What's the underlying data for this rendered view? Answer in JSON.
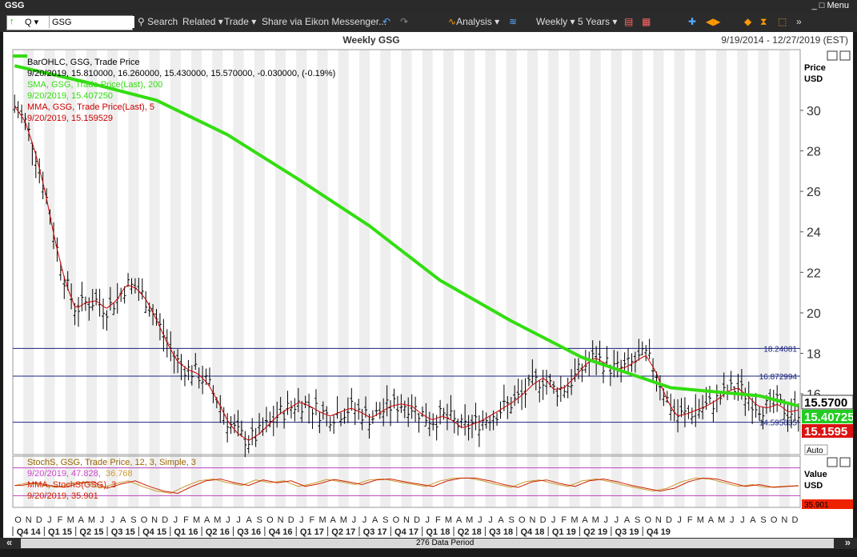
{
  "window": {
    "title": "GSG",
    "menu": "Menu"
  },
  "toolbar": {
    "ric": "GSG",
    "search": "Search",
    "related": "Related",
    "trade": "Trade",
    "share": "Share via Eikon Messenger...",
    "analysis": "Analysis",
    "interval": "Weekly",
    "range": "5 Years"
  },
  "header": {
    "title": "Weekly GSG",
    "date_range": "9/19/2014 - 12/27/2019 (EST)"
  },
  "legend": {
    "l1": "BarOHLC, GSG, Trade Price",
    "l2": "9/20/2019, 15.810000, 16.260000, 15.430000, 15.570000, -0.030000, (-0.19%)",
    "l3": "SMA, GSG, Trade Price(Last), 200",
    "l4": "9/20/2019, 15.407250",
    "l5": "MMA, GSG, Trade Price(Last), 5",
    "l6": "9/20/2019, 15.159529",
    "s1": "StochS, GSG, Trade Price, 12, 3, Simple, 3",
    "s2a": "9/20/2019, 47.828,",
    "s2b": "36.768",
    "s3": "MMA, StochS(GSG), 3",
    "s4": "9/20/2019, 35.901"
  },
  "axis": {
    "price_label": "Price",
    "price_unit": "USD",
    "value_label": "Value",
    "value_unit": "USD",
    "auto": "Auto",
    "data_period": "276 Data Period"
  },
  "colors": {
    "sma": "#33dd11",
    "mma": "#cc0000",
    "stoch": "#cc9933",
    "stoch_ma": "#cc2200",
    "hline": "#1a237e",
    "band": "#bb44bb",
    "bar": "#000000"
  },
  "chart_data": {
    "type": "line",
    "ylim": [
      13,
      33
    ],
    "yticks": [
      16,
      18,
      20,
      22,
      24,
      26,
      28,
      30
    ],
    "hlines": [
      {
        "value": 18.24081,
        "label": "18.24081"
      },
      {
        "value": 16.872994,
        "label": "16.872994"
      },
      {
        "value": 14.595035,
        "label": "14.595035"
      }
    ],
    "last_badges": [
      {
        "value": "15.5700",
        "color": "#ffffff",
        "bg": "#ffffff",
        "text": "#000000"
      },
      {
        "value": "15.40725",
        "bg": "#22cc22",
        "text": "#ffffff"
      },
      {
        "value": "15.1595",
        "bg": "#dd1111",
        "text": "#ffffff"
      }
    ],
    "stoch_badge": "35.901",
    "months": [
      "O",
      "N",
      "D",
      "J",
      "F",
      "M",
      "A",
      "M",
      "J",
      "J",
      "A",
      "S",
      "O",
      "N",
      "D",
      "J",
      "F",
      "M",
      "A",
      "M",
      "J",
      "J",
      "A",
      "S",
      "O",
      "N",
      "D",
      "J",
      "F",
      "M",
      "A",
      "M",
      "J",
      "J",
      "A",
      "S",
      "O",
      "N",
      "D",
      "J",
      "F",
      "M",
      "A",
      "M",
      "J",
      "J",
      "A",
      "S",
      "O",
      "N",
      "D",
      "J",
      "F",
      "M",
      "A",
      "M",
      "J",
      "J",
      "A",
      "S",
      "O",
      "N",
      "D",
      "J",
      "F",
      "M",
      "A",
      "M",
      "J",
      "J",
      "A",
      "S",
      "O",
      "N",
      "D"
    ],
    "quarters": [
      "Q4 14",
      "Q1 15",
      "Q2 15",
      "Q3 15",
      "Q4 15",
      "Q1 16",
      "Q2 16",
      "Q3 16",
      "Q4 16",
      "Q1 17",
      "Q2 17",
      "Q3 17",
      "Q4 17",
      "Q1 18",
      "Q2 18",
      "Q3 18",
      "Q4 18",
      "Q1 19",
      "Q2 19",
      "Q3 19",
      "Q4 19"
    ],
    "mma_keypoints": [
      [
        0,
        30.2
      ],
      [
        2,
        29.5
      ],
      [
        4,
        28
      ],
      [
        6,
        26
      ],
      [
        8,
        23.5
      ],
      [
        10,
        21.5
      ],
      [
        12,
        20.2
      ],
      [
        14,
        20.5
      ],
      [
        16,
        20.6
      ],
      [
        18,
        20.2
      ],
      [
        20,
        20.6
      ],
      [
        22,
        21.4
      ],
      [
        24,
        21.2
      ],
      [
        26,
        20.6
      ],
      [
        28,
        19.6
      ],
      [
        30,
        18.5
      ],
      [
        32,
        17.6
      ],
      [
        34,
        17.2
      ],
      [
        36,
        17
      ],
      [
        38,
        16.5
      ],
      [
        40,
        15.6
      ],
      [
        42,
        14.6
      ],
      [
        44,
        14
      ],
      [
        46,
        13.7
      ],
      [
        48,
        14
      ],
      [
        50,
        14.5
      ],
      [
        52,
        15
      ],
      [
        54,
        15.3
      ],
      [
        56,
        15.6
      ],
      [
        58,
        15.4
      ],
      [
        60,
        15.1
      ],
      [
        62,
        14.9
      ],
      [
        64,
        15.1
      ],
      [
        66,
        15.3
      ],
      [
        68,
        15.1
      ],
      [
        70,
        14.8
      ],
      [
        72,
        15.1
      ],
      [
        74,
        15.4
      ],
      [
        76,
        15.5
      ],
      [
        78,
        15.4
      ],
      [
        80,
        15
      ],
      [
        82,
        14.7
      ],
      [
        84,
        14.9
      ],
      [
        86,
        14.7
      ],
      [
        88,
        14.3
      ],
      [
        90,
        14.5
      ],
      [
        92,
        14.7
      ],
      [
        94,
        15
      ],
      [
        96,
        15.3
      ],
      [
        98,
        15.6
      ],
      [
        100,
        16
      ],
      [
        102,
        16.5
      ],
      [
        104,
        16.8
      ],
      [
        106,
        16.2
      ],
      [
        108,
        16.3
      ],
      [
        110,
        16.8
      ],
      [
        112,
        17.4
      ],
      [
        114,
        17.8
      ],
      [
        116,
        17.5
      ],
      [
        118,
        17.2
      ],
      [
        120,
        17.3
      ],
      [
        122,
        17.6
      ],
      [
        124,
        17.9
      ],
      [
        126,
        17.1
      ],
      [
        128,
        15.8
      ],
      [
        130,
        14.9
      ],
      [
        132,
        15.0
      ],
      [
        134,
        15.2
      ],
      [
        136,
        15.4
      ],
      [
        138,
        15.7
      ],
      [
        140,
        16.1
      ],
      [
        142,
        16.3
      ],
      [
        144,
        15.9
      ],
      [
        146,
        15.4
      ],
      [
        148,
        15.3
      ],
      [
        150,
        15.5
      ],
      [
        152,
        15.1
      ],
      [
        154,
        15.2
      ]
    ],
    "sma_keypoints": [
      [
        0,
        32.2
      ],
      [
        20,
        31.4
      ],
      [
        40,
        30.5
      ],
      [
        60,
        28.8
      ],
      [
        80,
        26.6
      ],
      [
        100,
        24.3
      ],
      [
        120,
        21.6
      ],
      [
        140,
        19.6
      ],
      [
        160,
        17.8
      ],
      [
        185,
        16.3
      ],
      [
        210,
        15.9
      ],
      [
        221,
        15.4
      ]
    ],
    "stoch_keypoints": [
      [
        0,
        42
      ],
      [
        4,
        48
      ],
      [
        8,
        42
      ],
      [
        12,
        38
      ],
      [
        16,
        46
      ],
      [
        20,
        50
      ],
      [
        24,
        36
      ],
      [
        28,
        45
      ],
      [
        32,
        52
      ],
      [
        36,
        40
      ],
      [
        40,
        30
      ],
      [
        44,
        25
      ],
      [
        48,
        40
      ],
      [
        52,
        52
      ],
      [
        56,
        56
      ],
      [
        60,
        48
      ],
      [
        64,
        42
      ],
      [
        68,
        54
      ],
      [
        72,
        48
      ],
      [
        76,
        52
      ],
      [
        80,
        40
      ],
      [
        84,
        46
      ],
      [
        88,
        55
      ],
      [
        92,
        50
      ],
      [
        96,
        44
      ],
      [
        100,
        54
      ],
      [
        104,
        56
      ],
      [
        108,
        50
      ],
      [
        112,
        45
      ],
      [
        116,
        40
      ],
      [
        120,
        52
      ],
      [
        124,
        58
      ],
      [
        128,
        58
      ],
      [
        132,
        52
      ],
      [
        136,
        44
      ],
      [
        140,
        38
      ],
      [
        144,
        50
      ],
      [
        148,
        54
      ],
      [
        152,
        46
      ],
      [
        156,
        40
      ],
      [
        160,
        52
      ],
      [
        164,
        56
      ],
      [
        168,
        50
      ],
      [
        172,
        42
      ],
      [
        176,
        36
      ],
      [
        180,
        30
      ],
      [
        184,
        36
      ],
      [
        188,
        50
      ],
      [
        192,
        58
      ],
      [
        196,
        56
      ],
      [
        200,
        48
      ],
      [
        204,
        40
      ],
      [
        208,
        44
      ],
      [
        212,
        38
      ],
      [
        216,
        40
      ],
      [
        221,
        42
      ]
    ]
  }
}
